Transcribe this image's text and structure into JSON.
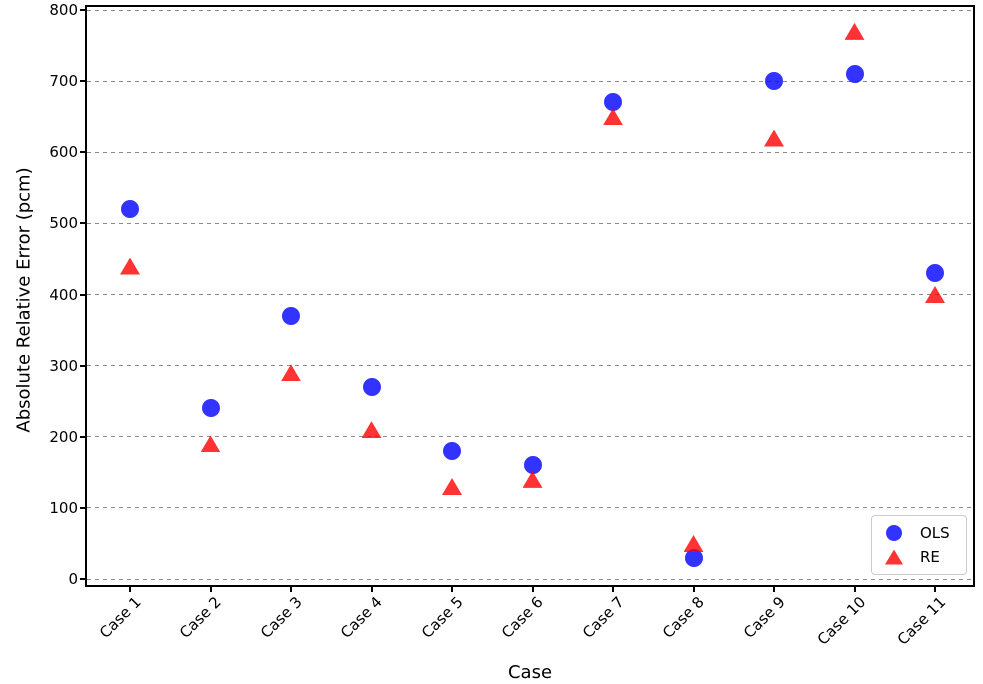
{
  "chart_data": {
    "type": "scatter",
    "title": "",
    "xlabel": "Case",
    "ylabel": "Absolute Relative Error (pcm)",
    "categories": [
      "Case 1",
      "Case 2",
      "Case 3",
      "Case 4",
      "Case 5",
      "Case 6",
      "Case 7",
      "Case 8",
      "Case 9",
      "Case 10",
      "Case 11"
    ],
    "series": [
      {
        "name": "OLS",
        "marker": "circle",
        "color": "#0000ff",
        "alpha": 0.8,
        "values": [
          520,
          240,
          370,
          270,
          180,
          160,
          670,
          30,
          700,
          710,
          430
        ]
      },
      {
        "name": "RE",
        "marker": "triangle",
        "color": "#ff0000",
        "alpha": 0.8,
        "values": [
          440,
          190,
          290,
          210,
          130,
          140,
          650,
          50,
          620,
          770,
          400
        ]
      }
    ],
    "ylim": [
      0,
      800
    ],
    "yticks": [
      0,
      100,
      200,
      300,
      400,
      500,
      600,
      700,
      800
    ],
    "grid": {
      "axis": "y",
      "style": "dashed",
      "color": "#8c8c8c"
    },
    "legend": {
      "position": "lower right"
    }
  }
}
